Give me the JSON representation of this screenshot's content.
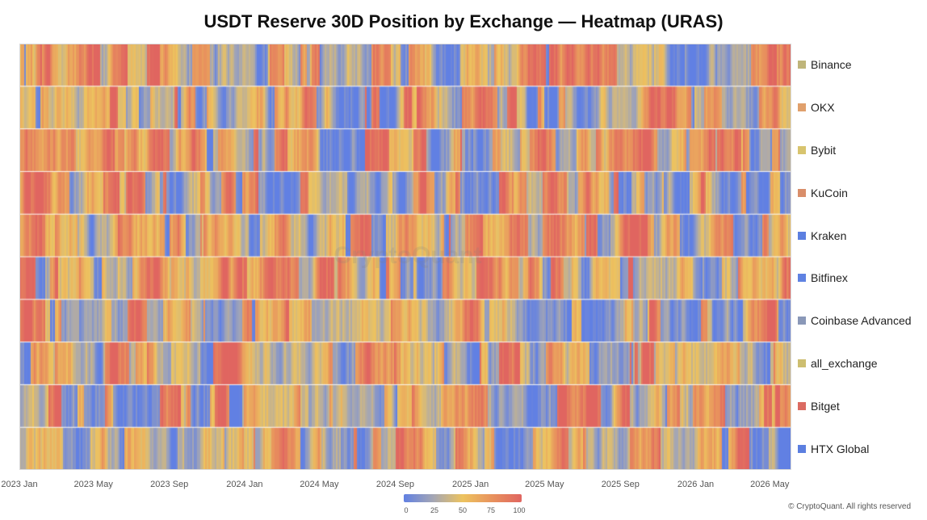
{
  "chart_data": {
    "type": "heatmap",
    "title": "USDT Reserve 30D Position by Exchange — Heatmap (URAS)",
    "x_tick_labels": [
      "2023 Jan",
      "2023 May",
      "2023 Sep",
      "2024 Jan",
      "2024 May",
      "2024 Sep",
      "2025 Jan",
      "2025 May",
      "2025 Sep",
      "2026 Jan",
      "2026 May"
    ],
    "x_range": [
      "2023-01-01",
      "2026-06-05"
    ],
    "rows": [
      {
        "name": "Binance",
        "color": "#bfb57a"
      },
      {
        "name": "OKX",
        "color": "#e0a06c"
      },
      {
        "name": "Bybit",
        "color": "#d8c46e"
      },
      {
        "name": "KuCoin",
        "color": "#d98e6a"
      },
      {
        "name": "Kraken",
        "color": "#5c7fe0"
      },
      {
        "name": "Bitfinex",
        "color": "#5f82e2"
      },
      {
        "name": "Coinbase Advanced",
        "color": "#8a98b8"
      },
      {
        "name": "all_exchange",
        "color": "#cdbe70"
      },
      {
        "name": "Bitget",
        "color": "#db6b62"
      },
      {
        "name": "HTX Global",
        "color": "#5c7fe0"
      }
    ],
    "color_scale": {
      "min": 0,
      "max": 100,
      "ticks": [
        "0",
        "25",
        "50",
        "75",
        "100"
      ],
      "colors": [
        "#6180e3",
        "#a4a6b4",
        "#edc35f",
        "#e8925d",
        "#e06560"
      ]
    }
  },
  "watermark": "CryptoQuant",
  "copyright": "© CryptoQuant. All rights reserved"
}
